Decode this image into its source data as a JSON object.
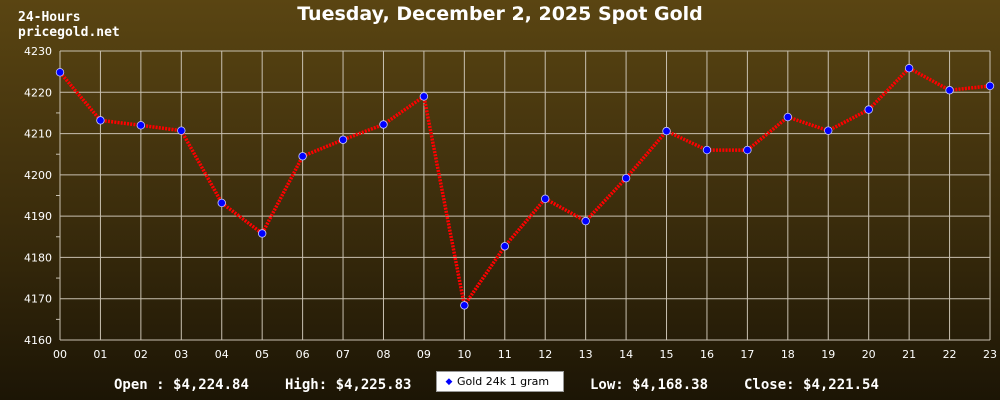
{
  "header": {
    "line1": "24-Hours",
    "line2": "pricegold.net",
    "title": "Tuesday, December 2, 2025 Spot Gold"
  },
  "chart_data": {
    "type": "line",
    "title": "Tuesday, December 2, 2025 Spot Gold",
    "xlabel": "",
    "ylabel": "",
    "ylim": [
      4160,
      4230
    ],
    "yticks": [
      4160,
      4170,
      4180,
      4190,
      4200,
      4210,
      4220,
      4230
    ],
    "categories": [
      "00",
      "01",
      "02",
      "03",
      "04",
      "05",
      "06",
      "07",
      "08",
      "09",
      "10",
      "11",
      "12",
      "13",
      "14",
      "15",
      "16",
      "17",
      "18",
      "19",
      "20",
      "21",
      "22",
      "23"
    ],
    "grid": true,
    "legend_position": "bottom-center",
    "series": [
      {
        "name": "Gold 24k 1 gram",
        "line_color": "#ff0000",
        "marker_color": "#0000ff",
        "values": [
          4224.84,
          4213.2,
          4212.0,
          4210.7,
          4193.2,
          4185.8,
          4204.5,
          4208.5,
          4212.2,
          4219.0,
          4168.38,
          4182.7,
          4194.2,
          4188.8,
          4199.2,
          4210.6,
          4206.0,
          4206.0,
          4214.0,
          4210.7,
          4215.8,
          4225.83,
          4220.5,
          4221.54
        ]
      }
    ]
  },
  "footer": {
    "open_label": "Open : ",
    "open_value": "$4,224.84",
    "high_label": "High: ",
    "high_value": "$4,225.83",
    "legend_label": "Gold 24k 1 gram",
    "low_label": "Low: ",
    "low_value": "$4,168.38",
    "close_label": "Close: ",
    "close_value": "$4,221.54"
  },
  "colors": {
    "grid": "#c8c0b0",
    "line": "#ff0000",
    "marker": "#0000ff"
  }
}
